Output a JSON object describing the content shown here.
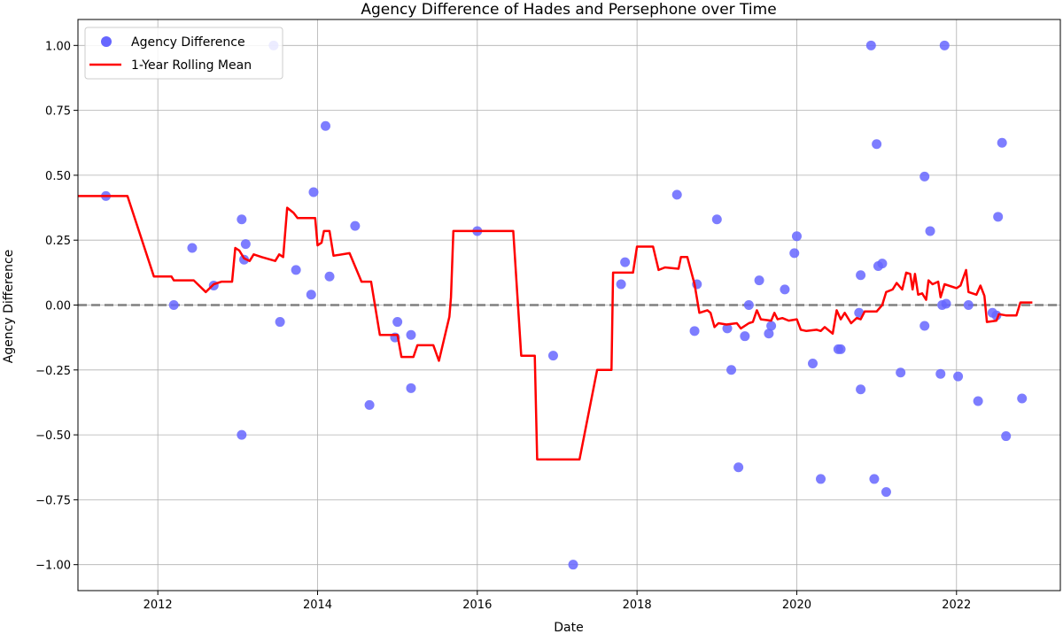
{
  "chart_data": {
    "type": "scatter",
    "title": "Agency Difference of Hades and Persephone over Time",
    "xlabel": "Date",
    "ylabel": "Agency Difference",
    "xlim": [
      2011.0,
      2023.3
    ],
    "ylim": [
      -1.1,
      1.1
    ],
    "xticks": [
      2012,
      2014,
      2016,
      2018,
      2020,
      2022
    ],
    "yticks": [
      -1.0,
      -0.75,
      -0.5,
      -0.25,
      0.0,
      0.25,
      0.5,
      0.75,
      1.0
    ],
    "ytick_labels": [
      "−1.00",
      "−0.75",
      "−0.50",
      "−0.25",
      "0.00",
      "0.25",
      "0.50",
      "0.75",
      "1.00"
    ],
    "grid": true,
    "legend_position": "top-left",
    "reference_line": {
      "y": 0.0,
      "style": "dashed",
      "color": "#808080"
    },
    "series": [
      {
        "name": "Agency Difference",
        "kind": "scatter",
        "color": "#6666ff",
        "points": [
          {
            "x": 2011.35,
            "y": 0.42
          },
          {
            "x": 2012.2,
            "y": 0.0
          },
          {
            "x": 2012.43,
            "y": 0.22
          },
          {
            "x": 2012.7,
            "y": 0.075
          },
          {
            "x": 2013.05,
            "y": 0.33
          },
          {
            "x": 2013.05,
            "y": -0.5
          },
          {
            "x": 2013.08,
            "y": 0.175
          },
          {
            "x": 2013.1,
            "y": 0.235
          },
          {
            "x": 2013.45,
            "y": 1.0
          },
          {
            "x": 2013.53,
            "y": -0.065
          },
          {
            "x": 2013.73,
            "y": 0.135
          },
          {
            "x": 2013.92,
            "y": 0.04
          },
          {
            "x": 2013.95,
            "y": 0.435
          },
          {
            "x": 2014.1,
            "y": 0.69
          },
          {
            "x": 2014.15,
            "y": 0.11
          },
          {
            "x": 2014.47,
            "y": 0.305
          },
          {
            "x": 2014.65,
            "y": -0.385
          },
          {
            "x": 2014.97,
            "y": -0.125
          },
          {
            "x": 2015.0,
            "y": -0.065
          },
          {
            "x": 2015.17,
            "y": -0.115
          },
          {
            "x": 2015.17,
            "y": -0.32
          },
          {
            "x": 2016.0,
            "y": 0.285
          },
          {
            "x": 2016.95,
            "y": -0.195
          },
          {
            "x": 2017.2,
            "y": -1.0
          },
          {
            "x": 2017.8,
            "y": 0.08
          },
          {
            "x": 2017.85,
            "y": 0.165
          },
          {
            "x": 2018.5,
            "y": 0.425
          },
          {
            "x": 2018.72,
            "y": -0.1
          },
          {
            "x": 2018.75,
            "y": 0.08
          },
          {
            "x": 2019.0,
            "y": 0.33
          },
          {
            "x": 2019.13,
            "y": -0.09
          },
          {
            "x": 2019.18,
            "y": -0.25
          },
          {
            "x": 2019.27,
            "y": -0.625
          },
          {
            "x": 2019.35,
            "y": -0.12
          },
          {
            "x": 2019.4,
            "y": 0.0
          },
          {
            "x": 2019.53,
            "y": 0.095
          },
          {
            "x": 2019.65,
            "y": -0.11
          },
          {
            "x": 2019.68,
            "y": -0.08
          },
          {
            "x": 2019.85,
            "y": 0.06
          },
          {
            "x": 2019.97,
            "y": 0.2
          },
          {
            "x": 2020.0,
            "y": 0.265
          },
          {
            "x": 2020.2,
            "y": -0.225
          },
          {
            "x": 2020.3,
            "y": -0.67
          },
          {
            "x": 2020.52,
            "y": -0.17
          },
          {
            "x": 2020.55,
            "y": -0.17
          },
          {
            "x": 2020.78,
            "y": -0.03
          },
          {
            "x": 2020.8,
            "y": -0.325
          },
          {
            "x": 2020.8,
            "y": 0.115
          },
          {
            "x": 2020.93,
            "y": 1.0
          },
          {
            "x": 2020.97,
            "y": -0.67
          },
          {
            "x": 2021.0,
            "y": 0.62
          },
          {
            "x": 2021.02,
            "y": 0.15
          },
          {
            "x": 2021.07,
            "y": 0.16
          },
          {
            "x": 2021.12,
            "y": -0.72
          },
          {
            "x": 2021.3,
            "y": -0.26
          },
          {
            "x": 2021.6,
            "y": 0.495
          },
          {
            "x": 2021.6,
            "y": -0.08
          },
          {
            "x": 2021.67,
            "y": 0.285
          },
          {
            "x": 2021.8,
            "y": -0.265
          },
          {
            "x": 2021.82,
            "y": 0.0
          },
          {
            "x": 2021.85,
            "y": 1.0
          },
          {
            "x": 2021.87,
            "y": 0.005
          },
          {
            "x": 2022.02,
            "y": -0.275
          },
          {
            "x": 2022.15,
            "y": 0.0
          },
          {
            "x": 2022.27,
            "y": -0.37
          },
          {
            "x": 2022.45,
            "y": -0.03
          },
          {
            "x": 2022.5,
            "y": -0.04
          },
          {
            "x": 2022.52,
            "y": 0.34
          },
          {
            "x": 2022.57,
            "y": 0.625
          },
          {
            "x": 2022.62,
            "y": -0.505
          },
          {
            "x": 2022.82,
            "y": -0.36
          }
        ]
      },
      {
        "name": "1-Year Rolling Mean",
        "kind": "line",
        "color": "#ff0000",
        "points": [
          {
            "x": 2011.0,
            "y": 0.42
          },
          {
            "x": 2011.62,
            "y": 0.42
          },
          {
            "x": 2011.95,
            "y": 0.11
          },
          {
            "x": 2012.17,
            "y": 0.11
          },
          {
            "x": 2012.2,
            "y": 0.095
          },
          {
            "x": 2012.45,
            "y": 0.095
          },
          {
            "x": 2012.6,
            "y": 0.05
          },
          {
            "x": 2012.7,
            "y": 0.08
          },
          {
            "x": 2012.8,
            "y": 0.09
          },
          {
            "x": 2012.93,
            "y": 0.09
          },
          {
            "x": 2012.97,
            "y": 0.22
          },
          {
            "x": 2013.02,
            "y": 0.21
          },
          {
            "x": 2013.08,
            "y": 0.18
          },
          {
            "x": 2013.15,
            "y": 0.17
          },
          {
            "x": 2013.2,
            "y": 0.195
          },
          {
            "x": 2013.3,
            "y": 0.185
          },
          {
            "x": 2013.47,
            "y": 0.17
          },
          {
            "x": 2013.52,
            "y": 0.195
          },
          {
            "x": 2013.57,
            "y": 0.185
          },
          {
            "x": 2013.62,
            "y": 0.375
          },
          {
            "x": 2013.7,
            "y": 0.355
          },
          {
            "x": 2013.75,
            "y": 0.335
          },
          {
            "x": 2013.97,
            "y": 0.335
          },
          {
            "x": 2014.0,
            "y": 0.23
          },
          {
            "x": 2014.05,
            "y": 0.24
          },
          {
            "x": 2014.08,
            "y": 0.285
          },
          {
            "x": 2014.15,
            "y": 0.285
          },
          {
            "x": 2014.2,
            "y": 0.19
          },
          {
            "x": 2014.4,
            "y": 0.2
          },
          {
            "x": 2014.55,
            "y": 0.09
          },
          {
            "x": 2014.67,
            "y": 0.09
          },
          {
            "x": 2014.78,
            "y": -0.115
          },
          {
            "x": 2015.0,
            "y": -0.115
          },
          {
            "x": 2015.05,
            "y": -0.2
          },
          {
            "x": 2015.2,
            "y": -0.2
          },
          {
            "x": 2015.25,
            "y": -0.155
          },
          {
            "x": 2015.45,
            "y": -0.155
          },
          {
            "x": 2015.52,
            "y": -0.215
          },
          {
            "x": 2015.65,
            "y": -0.045
          },
          {
            "x": 2015.67,
            "y": 0.03
          },
          {
            "x": 2015.7,
            "y": 0.285
          },
          {
            "x": 2016.45,
            "y": 0.285
          },
          {
            "x": 2016.55,
            "y": -0.195
          },
          {
            "x": 2016.72,
            "y": -0.195
          },
          {
            "x": 2016.75,
            "y": -0.595
          },
          {
            "x": 2017.28,
            "y": -0.595
          },
          {
            "x": 2017.5,
            "y": -0.25
          },
          {
            "x": 2017.68,
            "y": -0.25
          },
          {
            "x": 2017.7,
            "y": 0.125
          },
          {
            "x": 2017.95,
            "y": 0.125
          },
          {
            "x": 2018.0,
            "y": 0.225
          },
          {
            "x": 2018.2,
            "y": 0.225
          },
          {
            "x": 2018.27,
            "y": 0.135
          },
          {
            "x": 2018.35,
            "y": 0.145
          },
          {
            "x": 2018.52,
            "y": 0.14
          },
          {
            "x": 2018.55,
            "y": 0.185
          },
          {
            "x": 2018.63,
            "y": 0.185
          },
          {
            "x": 2018.72,
            "y": 0.08
          },
          {
            "x": 2018.78,
            "y": -0.03
          },
          {
            "x": 2018.88,
            "y": -0.02
          },
          {
            "x": 2018.92,
            "y": -0.03
          },
          {
            "x": 2018.97,
            "y": -0.085
          },
          {
            "x": 2019.02,
            "y": -0.07
          },
          {
            "x": 2019.12,
            "y": -0.075
          },
          {
            "x": 2019.25,
            "y": -0.07
          },
          {
            "x": 2019.3,
            "y": -0.09
          },
          {
            "x": 2019.4,
            "y": -0.07
          },
          {
            "x": 2019.45,
            "y": -0.065
          },
          {
            "x": 2019.5,
            "y": -0.02
          },
          {
            "x": 2019.55,
            "y": -0.055
          },
          {
            "x": 2019.68,
            "y": -0.06
          },
          {
            "x": 2019.72,
            "y": -0.03
          },
          {
            "x": 2019.76,
            "y": -0.055
          },
          {
            "x": 2019.82,
            "y": -0.05
          },
          {
            "x": 2019.9,
            "y": -0.06
          },
          {
            "x": 2020.0,
            "y": -0.055
          },
          {
            "x": 2020.05,
            "y": -0.095
          },
          {
            "x": 2020.12,
            "y": -0.1
          },
          {
            "x": 2020.25,
            "y": -0.095
          },
          {
            "x": 2020.3,
            "y": -0.1
          },
          {
            "x": 2020.35,
            "y": -0.085
          },
          {
            "x": 2020.45,
            "y": -0.11
          },
          {
            "x": 2020.5,
            "y": -0.02
          },
          {
            "x": 2020.55,
            "y": -0.055
          },
          {
            "x": 2020.6,
            "y": -0.03
          },
          {
            "x": 2020.68,
            "y": -0.07
          },
          {
            "x": 2020.75,
            "y": -0.05
          },
          {
            "x": 2020.8,
            "y": -0.055
          },
          {
            "x": 2020.85,
            "y": -0.025
          },
          {
            "x": 2021.0,
            "y": -0.025
          },
          {
            "x": 2021.07,
            "y": 0.0
          },
          {
            "x": 2021.12,
            "y": 0.05
          },
          {
            "x": 2021.2,
            "y": 0.06
          },
          {
            "x": 2021.25,
            "y": 0.085
          },
          {
            "x": 2021.32,
            "y": 0.06
          },
          {
            "x": 2021.37,
            "y": 0.125
          },
          {
            "x": 2021.42,
            "y": 0.12
          },
          {
            "x": 2021.45,
            "y": 0.06
          },
          {
            "x": 2021.48,
            "y": 0.12
          },
          {
            "x": 2021.52,
            "y": 0.04
          },
          {
            "x": 2021.57,
            "y": 0.045
          },
          {
            "x": 2021.62,
            "y": 0.02
          },
          {
            "x": 2021.65,
            "y": 0.095
          },
          {
            "x": 2021.7,
            "y": 0.08
          },
          {
            "x": 2021.77,
            "y": 0.09
          },
          {
            "x": 2021.8,
            "y": 0.03
          },
          {
            "x": 2021.85,
            "y": 0.08
          },
          {
            "x": 2022.0,
            "y": 0.065
          },
          {
            "x": 2022.05,
            "y": 0.075
          },
          {
            "x": 2022.12,
            "y": 0.135
          },
          {
            "x": 2022.15,
            "y": 0.05
          },
          {
            "x": 2022.25,
            "y": 0.04
          },
          {
            "x": 2022.3,
            "y": 0.075
          },
          {
            "x": 2022.35,
            "y": 0.035
          },
          {
            "x": 2022.38,
            "y": -0.065
          },
          {
            "x": 2022.5,
            "y": -0.06
          },
          {
            "x": 2022.53,
            "y": -0.035
          },
          {
            "x": 2022.62,
            "y": -0.04
          },
          {
            "x": 2022.75,
            "y": -0.04
          },
          {
            "x": 2022.8,
            "y": 0.01
          },
          {
            "x": 2022.95,
            "y": 0.01
          }
        ]
      }
    ]
  }
}
